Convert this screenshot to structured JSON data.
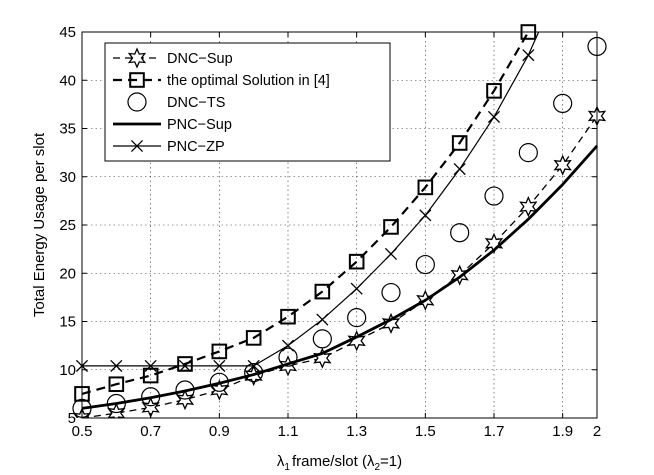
{
  "chart_data": {
    "type": "line",
    "title": "",
    "xlabel": "λ1 frame/slot (λ2=1)",
    "xlabel_parts": {
      "lambda": "λ",
      "sub1": "1",
      "text1": "frame/slot (",
      "lambda2": "λ",
      "sub2": "2",
      "text2": "=1)"
    },
    "ylabel": "Total Energy Usage per slot",
    "xlim": [
      0.5,
      2.0
    ],
    "ylim": [
      5,
      45
    ],
    "xticks": [
      "0.5",
      "0.7",
      "0.9",
      "1.1",
      "1.3",
      "1.5",
      "1.7",
      "1.9",
      "2"
    ],
    "xtick_values": [
      0.5,
      0.7,
      0.9,
      1.1,
      1.3,
      1.5,
      1.7,
      1.9,
      2.0
    ],
    "yticks": [
      "5",
      "10",
      "15",
      "20",
      "25",
      "30",
      "35",
      "40",
      "45"
    ],
    "ytick_values": [
      5,
      10,
      15,
      20,
      25,
      30,
      35,
      40,
      45
    ],
    "grid": true,
    "legend_position": "top-left",
    "series": [
      {
        "name": "DNC−Sup",
        "line": "dashed-thin",
        "marker": "star",
        "x": [
          0.5,
          0.6,
          0.7,
          0.8,
          0.9,
          1.0,
          1.1,
          1.2,
          1.3,
          1.4,
          1.5,
          1.6,
          1.7,
          1.8,
          1.9,
          2.0
        ],
        "y": [
          5.0,
          5.5,
          6.1,
          6.9,
          7.9,
          9.4,
          10.4,
          11.2,
          13.0,
          14.8,
          17.2,
          19.8,
          23.1,
          26.9,
          31.2,
          36.3
        ]
      },
      {
        "name": "the optimal Solution in [4]",
        "line": "dashed-thick",
        "marker": "square",
        "x": [
          0.5,
          0.6,
          0.7,
          0.8,
          0.9,
          1.0,
          1.1,
          1.2,
          1.3,
          1.4,
          1.5,
          1.6,
          1.7,
          1.8
        ],
        "y": [
          7.5,
          8.5,
          9.4,
          10.6,
          11.9,
          13.3,
          15.5,
          18.1,
          21.2,
          24.8,
          28.9,
          33.5,
          38.9,
          45.0
        ]
      },
      {
        "name": "DNC−TS",
        "line": "none",
        "marker": "circle",
        "x": [
          0.5,
          0.6,
          0.7,
          0.8,
          0.9,
          1.0,
          1.1,
          1.2,
          1.3,
          1.4,
          1.5,
          1.6,
          1.7,
          1.8,
          1.9,
          2.0
        ],
        "y": [
          6.0,
          6.5,
          7.2,
          7.9,
          8.7,
          9.7,
          11.3,
          13.2,
          15.4,
          18.0,
          20.9,
          24.2,
          28.0,
          32.5,
          37.6,
          43.5
        ]
      },
      {
        "name": "PNC−Sup",
        "line": "solid-thick",
        "marker": "none",
        "x": [
          0.5,
          0.6,
          0.7,
          0.8,
          0.9,
          1.0,
          1.1,
          1.2,
          1.3,
          1.4,
          1.5,
          1.6,
          1.7,
          1.8,
          1.9,
          2.0
        ],
        "y": [
          6.0,
          6.5,
          7.1,
          7.8,
          8.6,
          9.5,
          10.6,
          11.7,
          13.4,
          15.2,
          17.2,
          19.6,
          22.4,
          25.6,
          29.2,
          33.2
        ]
      },
      {
        "name": "PNC−ZP",
        "line": "solid-thin",
        "marker": "x",
        "x": [
          0.5,
          0.6,
          0.7,
          0.8,
          0.9,
          1.0,
          1.1,
          1.2,
          1.3,
          1.4,
          1.5,
          1.6,
          1.7,
          1.8,
          1.83
        ],
        "y": [
          10.4,
          10.4,
          10.4,
          10.4,
          10.4,
          10.4,
          12.5,
          15.2,
          18.4,
          22.0,
          26.0,
          30.8,
          36.2,
          42.6,
          45.0
        ]
      }
    ]
  }
}
